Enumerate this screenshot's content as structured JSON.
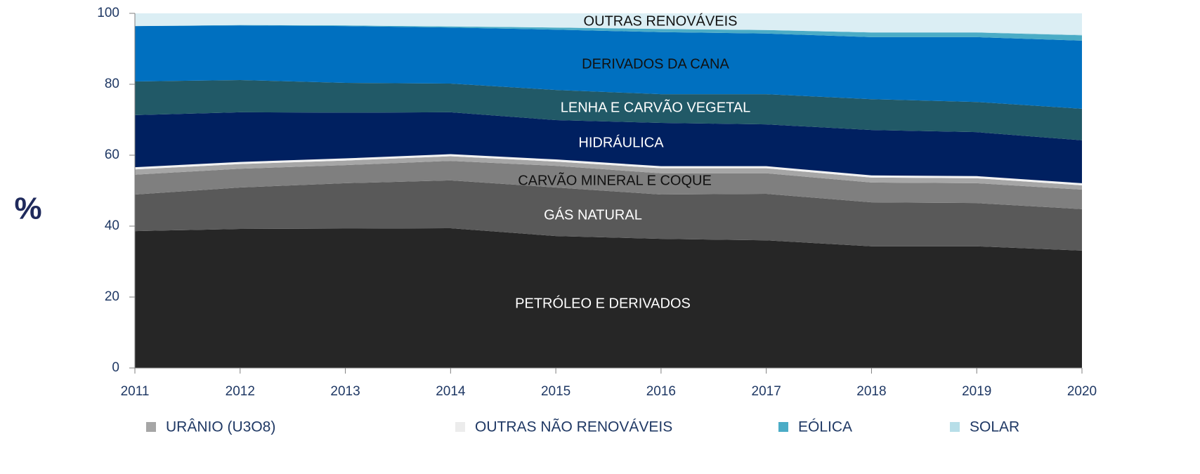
{
  "chart_data": {
    "type": "stacked-area",
    "y_label": "%",
    "x": [
      2011,
      2012,
      2013,
      2014,
      2015,
      2016,
      2017,
      2018,
      2019,
      2020
    ],
    "xlim": [
      2011,
      2020
    ],
    "xticks": [
      2011,
      2012,
      2013,
      2014,
      2015,
      2016,
      2017,
      2018,
      2019,
      2020
    ],
    "ylim": [
      0,
      100
    ],
    "yticks": [
      0,
      20,
      40,
      60,
      80,
      100
    ],
    "series": [
      {
        "name": "PETRÓLEO E DERIVADOS",
        "color": "#262626",
        "values": [
          38.6,
          39.2,
          39.3,
          39.4,
          37.2,
          36.4,
          36.0,
          34.3,
          34.3,
          33.1
        ]
      },
      {
        "name": "GÁS NATURAL",
        "color": "#595959",
        "values": [
          10.3,
          11.7,
          12.8,
          13.5,
          13.7,
          12.5,
          13.1,
          12.4,
          12.2,
          11.7
        ]
      },
      {
        "name": "CARVÃO MINERAL E COQUE",
        "color": "#7f7f7f",
        "values": [
          5.6,
          5.3,
          5.1,
          5.5,
          6.1,
          6.0,
          5.8,
          5.6,
          5.6,
          5.5
        ]
      },
      {
        "name": "URÂNIO (U3O8)",
        "color": "#a6a6a6",
        "values": [
          1.5,
          1.3,
          1.3,
          1.3,
          1.2,
          1.4,
          1.4,
          1.4,
          1.4,
          1.2
        ]
      },
      {
        "name": "OUTRAS NÃO RENOVÁVEIS",
        "color": "#f2f2f2",
        "values": [
          0.6,
          0.6,
          0.6,
          0.6,
          0.6,
          0.6,
          0.6,
          0.6,
          0.6,
          0.6
        ]
      },
      {
        "name": "HIDRÁULICA",
        "color": "#002060",
        "values": [
          14.7,
          14.0,
          12.9,
          11.8,
          11.1,
          12.2,
          11.8,
          12.8,
          12.4,
          12.1
        ]
      },
      {
        "name": "LENHA E CARVÃO VEGETAL",
        "color": "#215967",
        "values": [
          9.5,
          9.1,
          8.4,
          8.1,
          8.5,
          8.1,
          8.5,
          8.7,
          8.5,
          8.9
        ]
      },
      {
        "name": "DERIVADOS DA CANA",
        "color": "#0070c0",
        "values": [
          15.6,
          15.4,
          16.0,
          15.8,
          17.0,
          17.5,
          17.1,
          17.5,
          18.3,
          19.2
        ]
      },
      {
        "name": "EÓLICA",
        "color": "#4bacc6",
        "values": [
          0,
          0.1,
          0.2,
          0.3,
          0.6,
          0.9,
          1.0,
          1.3,
          1.3,
          1.5
        ]
      },
      {
        "name": "SOLAR",
        "color": "#b7dee8",
        "values": [
          0,
          0,
          0,
          0,
          0,
          0,
          0,
          0.1,
          0.1,
          0.2
        ]
      },
      {
        "name": "OUTRAS RENOVÁVEIS",
        "color": "#dbeef4",
        "values": [
          3.6,
          3.3,
          3.4,
          3.7,
          4.0,
          4.4,
          4.7,
          5.3,
          5.3,
          6.0
        ]
      }
    ]
  }
}
